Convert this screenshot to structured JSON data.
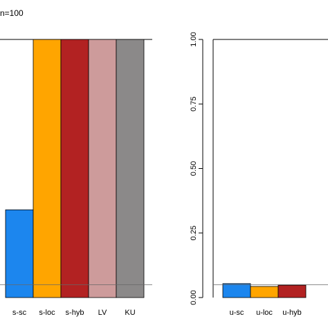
{
  "chart_data": [
    {
      "type": "bar",
      "title": "n=100",
      "categories": [
        "s-sc",
        "s-loc",
        "s-hyb",
        "LV",
        "KU"
      ],
      "values": [
        0.34,
        1.0,
        1.0,
        1.0,
        1.0
      ],
      "colors": [
        "#1c86ee",
        "#ffa500",
        "#b22222",
        "#cd9b9b",
        "#8b8989"
      ],
      "ylim": [
        0,
        1
      ],
      "hline": 0.05
    },
    {
      "type": "bar",
      "categories": [
        "u-sc",
        "u-loc",
        "u-hyb"
      ],
      "values": [
        0.054,
        0.043,
        0.048
      ],
      "colors": [
        "#1c86ee",
        "#ffa500",
        "#b22222"
      ],
      "ylim": [
        0,
        1
      ],
      "yticks": [
        {
          "value": 0,
          "label": "0.00"
        },
        {
          "value": 0.25,
          "label": "0.25"
        },
        {
          "value": 0.5,
          "label": "0.50"
        },
        {
          "value": 0.75,
          "label": "0.75"
        },
        {
          "value": 1,
          "label": "1.00"
        }
      ],
      "hline": 0.05
    }
  ]
}
